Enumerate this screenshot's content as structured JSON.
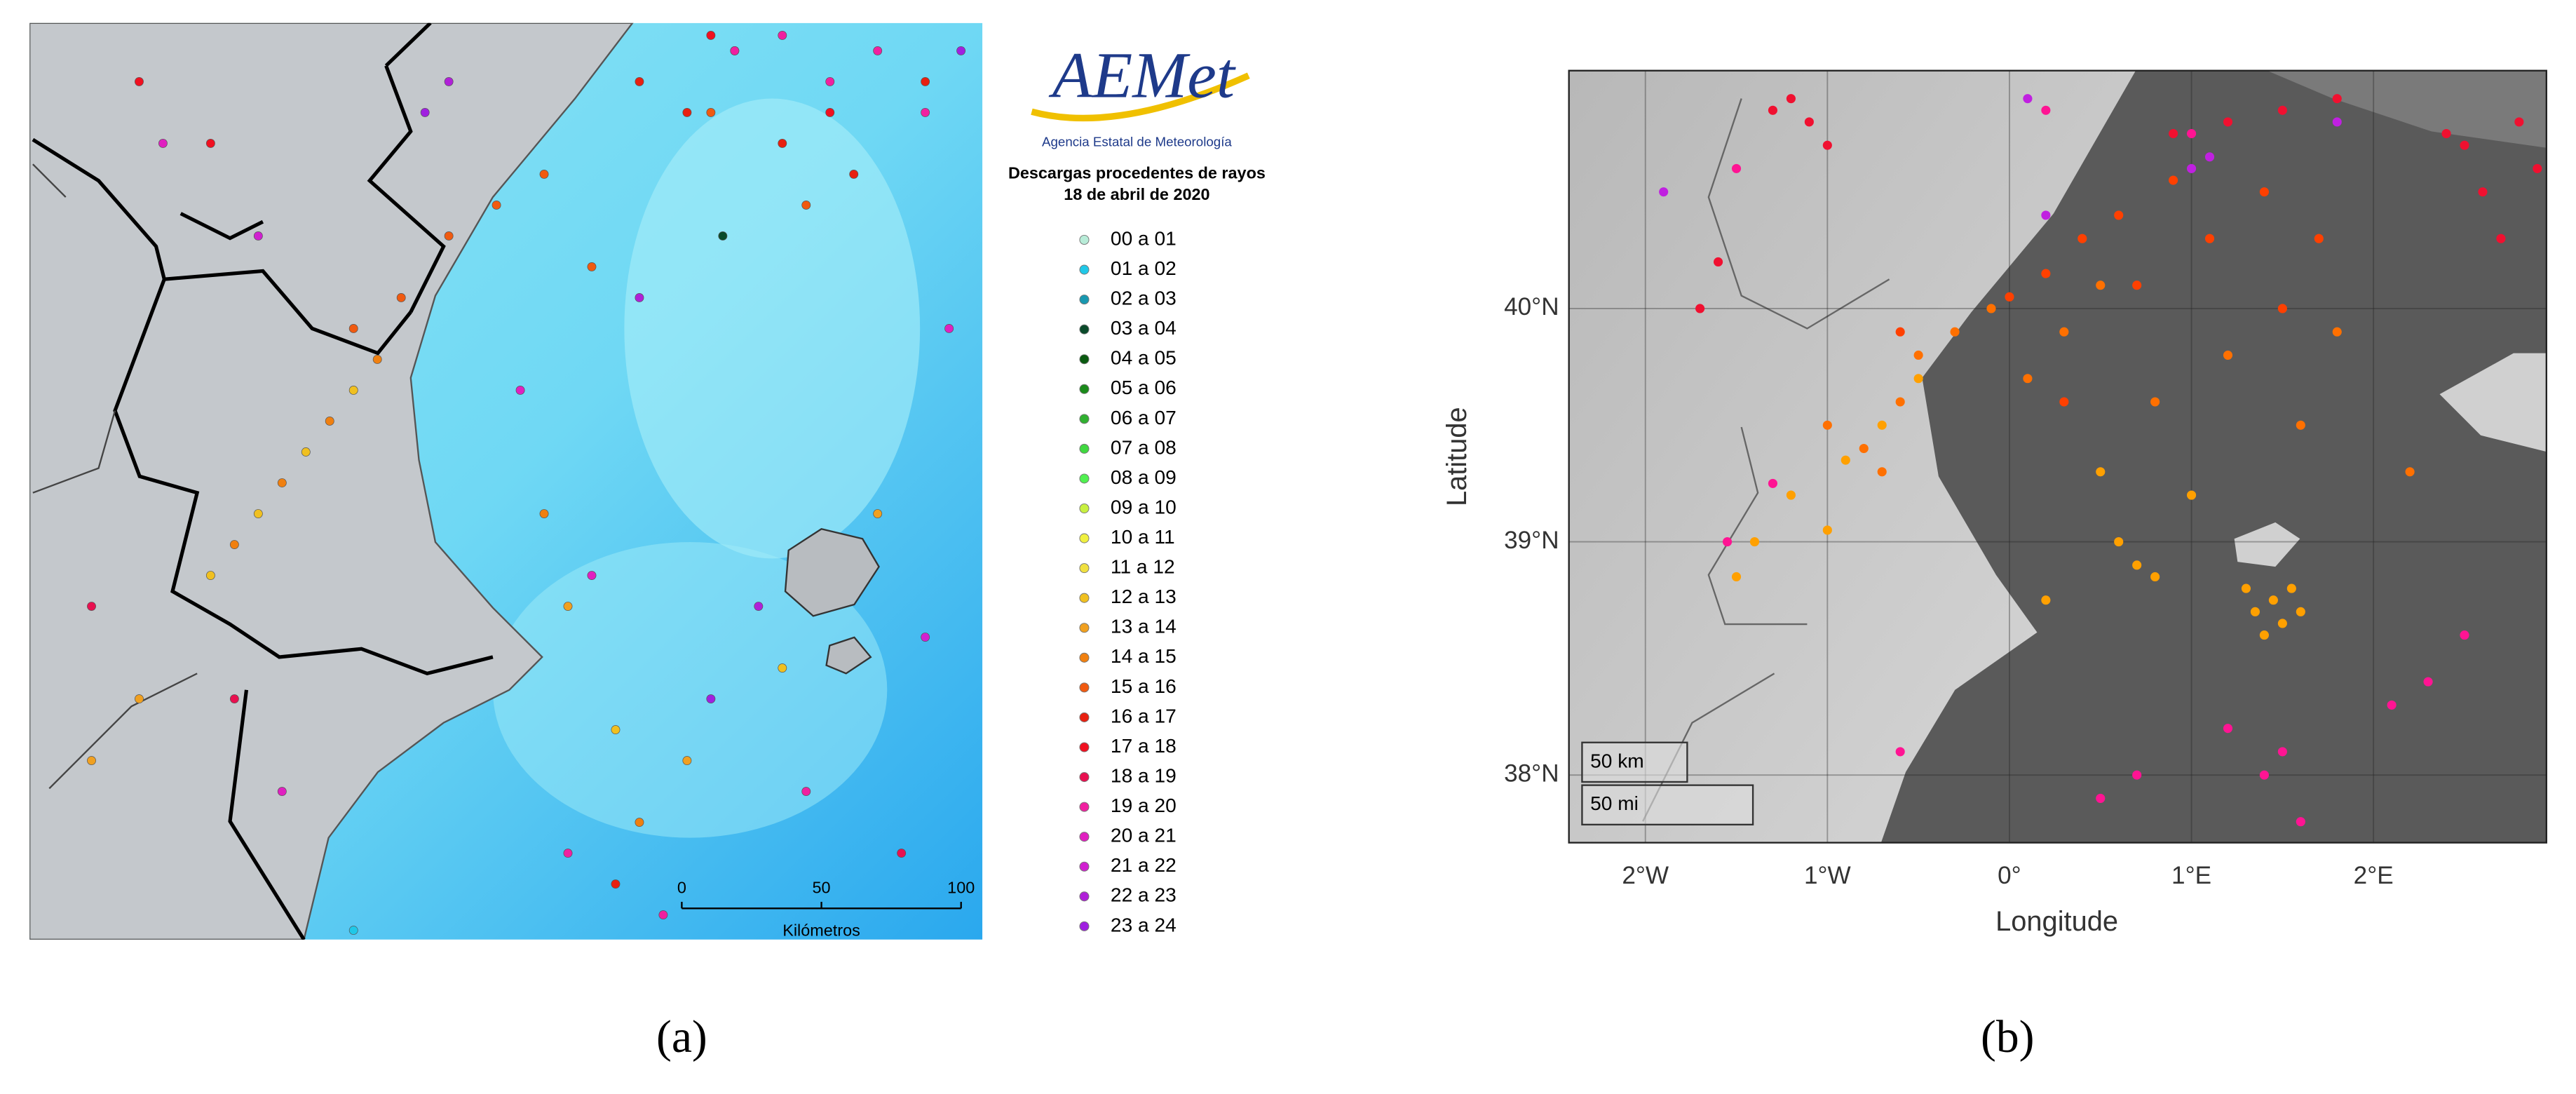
{
  "panel_a": {
    "logo": "AEMet",
    "agency": "Agencia Estatal de Meteorología",
    "title": "Descargas procedentes de rayos",
    "date": "18 de abril de 2020",
    "legend": [
      {
        "label": "00 a 01",
        "color": "#b8ecd8",
        "lon": [],
        "lat": []
      },
      {
        "label": "01 a 02",
        "color": "#20c8e8",
        "lon": [
          -0.6
        ],
        "lat": [
          37.85
        ]
      },
      {
        "label": "02 a 03",
        "color": "#1898b0",
        "lon": [],
        "lat": []
      },
      {
        "label": "03 a 04",
        "color": "#0a4a2a",
        "lon": [
          0.95
        ],
        "lat": [
          40.1
        ]
      },
      {
        "label": "04 a 05",
        "color": "#0a5a10",
        "lon": [],
        "lat": []
      },
      {
        "label": "05 a 06",
        "color": "#1a8a1a",
        "lon": [],
        "lat": []
      },
      {
        "label": "06 a 07",
        "color": "#30b030",
        "lon": [],
        "lat": []
      },
      {
        "label": "07 a 08",
        "color": "#40d840",
        "lon": [],
        "lat": []
      },
      {
        "label": "08 a 09",
        "color": "#50f050",
        "lon": [],
        "lat": []
      },
      {
        "label": "09 a 10",
        "color": "#c8f040",
        "lon": [],
        "lat": []
      },
      {
        "label": "10 a 11",
        "color": "#f0f040",
        "lon": [],
        "lat": []
      },
      {
        "label": "11 a 12",
        "color": "#f0e040",
        "lon": [],
        "lat": []
      },
      {
        "label": "12 a 13",
        "color": "#f0c020",
        "lon": [
          -1.2,
          -1.0,
          -0.8,
          -0.6,
          0.5,
          1.2
        ],
        "lat": [
          39.0,
          39.2,
          39.4,
          39.6,
          38.5,
          38.7
        ]
      },
      {
        "label": "13 a 14",
        "color": "#f0a020",
        "lon": [
          0.3,
          0.8,
          1.6,
          -1.5,
          -1.7
        ],
        "lat": [
          38.9,
          38.4,
          39.2,
          38.6,
          38.4
        ]
      },
      {
        "label": "14 a 15",
        "color": "#f08010",
        "lon": [
          -0.9,
          -0.7,
          -0.5,
          -1.1,
          0.2,
          0.6
        ],
        "lat": [
          39.3,
          39.5,
          39.7,
          39.1,
          39.2,
          38.2
        ]
      },
      {
        "label": "15 a 16",
        "color": "#f05a10",
        "lon": [
          -0.4,
          -0.2,
          0.0,
          0.2,
          0.4,
          0.9,
          1.3,
          -0.6
        ],
        "lat": [
          39.9,
          40.1,
          40.2,
          40.3,
          40.0,
          40.5,
          40.2,
          39.8
        ]
      },
      {
        "label": "16 a 17",
        "color": "#e82010",
        "lon": [
          0.6,
          0.8,
          1.0,
          1.2,
          1.5,
          1.8,
          0.5
        ],
        "lat": [
          40.6,
          40.5,
          40.7,
          40.4,
          40.3,
          40.6,
          38.0
        ]
      },
      {
        "label": "17 a 18",
        "color": "#f01020",
        "lon": [
          0.9,
          1.4,
          -1.2,
          -1.5
        ],
        "lat": [
          40.75,
          40.5,
          40.4,
          40.6
        ]
      },
      {
        "label": "18 a 19",
        "color": "#e81050",
        "lon": [
          -1.7,
          -1.1,
          1.7
        ],
        "lat": [
          38.9,
          38.6,
          38.1
        ]
      },
      {
        "label": "19 a 20",
        "color": "#f020a0",
        "lon": [
          1.0,
          1.2,
          1.4,
          1.6,
          1.8,
          1.3,
          0.3,
          0.7
        ],
        "lat": [
          40.7,
          40.75,
          40.6,
          40.7,
          40.5,
          38.3,
          38.1,
          37.9
        ]
      },
      {
        "label": "20 a 21",
        "color": "#e020c0",
        "lon": [
          -1.4,
          -0.9,
          0.1,
          0.4,
          1.9
        ],
        "lat": [
          40.4,
          38.3,
          39.6,
          39.0,
          39.8
        ]
      },
      {
        "label": "21 a 22",
        "color": "#d020d0",
        "lon": [
          -1.0,
          1.8
        ],
        "lat": [
          40.1,
          38.8
        ]
      },
      {
        "label": "22 a 23",
        "color": "#b020d8",
        "lon": [
          -0.2,
          0.6,
          1.1
        ],
        "lat": [
          40.6,
          39.9,
          38.9
        ]
      },
      {
        "label": "23 a 24",
        "color": "#a020e0",
        "lon": [
          -0.3,
          0.9,
          1.95
        ],
        "lat": [
          40.5,
          38.6,
          40.7
        ]
      }
    ],
    "scale": {
      "ticks": [
        0,
        50,
        100
      ],
      "unit": "Kilómetros"
    },
    "caption": "(a)"
  },
  "chart_data": {
    "type": "scatter",
    "caption": "(b)",
    "x_label": "Longitude",
    "y_label": "Latitude",
    "xlim": [
      -2.42,
      2.95
    ],
    "ylim": [
      37.71,
      41.02
    ],
    "xticks": [
      {
        "value": -2,
        "label": "2°W"
      },
      {
        "value": -1,
        "label": "1°W"
      },
      {
        "value": 0,
        "label": "0°"
      },
      {
        "value": 1,
        "label": "1°E"
      },
      {
        "value": 2,
        "label": "2°E"
      }
    ],
    "yticks": [
      {
        "value": 38,
        "label": "38°N"
      },
      {
        "value": 39,
        "label": "39°N"
      },
      {
        "value": 40,
        "label": "40°N"
      }
    ],
    "grid": true,
    "scale_labels": [
      "50 km",
      "50 mi"
    ],
    "series": [
      {
        "color": "#ffa000",
        "x": [
          1.35,
          1.45,
          1.5,
          1.55,
          1.4,
          1.6,
          1.3,
          0.6,
          0.8,
          0.5,
          -1.5,
          -1.4,
          -1.2,
          -0.9,
          -0.7,
          -0.5,
          0.2,
          1.0,
          -1.0,
          0.7
        ],
        "values": [
          38.7,
          38.75,
          38.65,
          38.8,
          38.6,
          38.7,
          38.8,
          39.0,
          38.85,
          39.3,
          38.85,
          39.0,
          39.2,
          39.35,
          39.5,
          39.7,
          38.75,
          39.2,
          39.05,
          38.9
        ]
      },
      {
        "color": "#ff7000",
        "x": [
          -0.8,
          -0.6,
          -0.5,
          -0.3,
          -0.1,
          0.1,
          0.3,
          0.5,
          0.8,
          1.2,
          1.6,
          1.8,
          2.2,
          -1.0,
          -0.7
        ],
        "values": [
          39.4,
          39.6,
          39.8,
          39.9,
          40.0,
          39.7,
          39.9,
          40.1,
          39.6,
          39.8,
          39.5,
          39.9,
          39.3,
          39.5,
          39.3
        ]
      },
      {
        "color": "#ff4000",
        "x": [
          0.0,
          0.2,
          0.4,
          0.6,
          0.9,
          1.1,
          1.4,
          1.7,
          0.3,
          -0.6,
          0.7,
          1.5
        ],
        "values": [
          40.05,
          40.15,
          40.3,
          40.4,
          40.55,
          40.3,
          40.5,
          40.3,
          39.6,
          39.9,
          40.1,
          40.0
        ]
      },
      {
        "color": "#f01030",
        "x": [
          -1.3,
          -1.2,
          -1.1,
          -1.0,
          -1.7,
          -1.6,
          2.5,
          2.6,
          2.7,
          2.8,
          2.9,
          2.4,
          1.5,
          1.8,
          0.9,
          1.2
        ],
        "values": [
          40.85,
          40.9,
          40.8,
          40.7,
          40.0,
          40.2,
          40.7,
          40.5,
          40.3,
          40.8,
          40.6,
          40.75,
          40.85,
          40.9,
          40.75,
          40.8
        ]
      },
      {
        "color": "#ff1493",
        "x": [
          -1.5,
          -1.55,
          -1.3,
          0.5,
          0.7,
          1.4,
          1.5,
          1.6,
          2.1,
          2.3,
          1.2,
          1.0,
          0.2,
          -0.6,
          2.5
        ],
        "values": [
          40.6,
          39.0,
          39.25,
          37.9,
          38.0,
          38.0,
          38.1,
          37.8,
          38.3,
          38.4,
          38.2,
          40.75,
          40.85,
          38.1,
          38.6
        ]
      },
      {
        "color": "#c020e0",
        "x": [
          0.1,
          0.2,
          1.0,
          1.1,
          1.8,
          -1.9
        ],
        "values": [
          40.9,
          40.4,
          40.6,
          40.65,
          40.8,
          40.5
        ]
      }
    ]
  }
}
